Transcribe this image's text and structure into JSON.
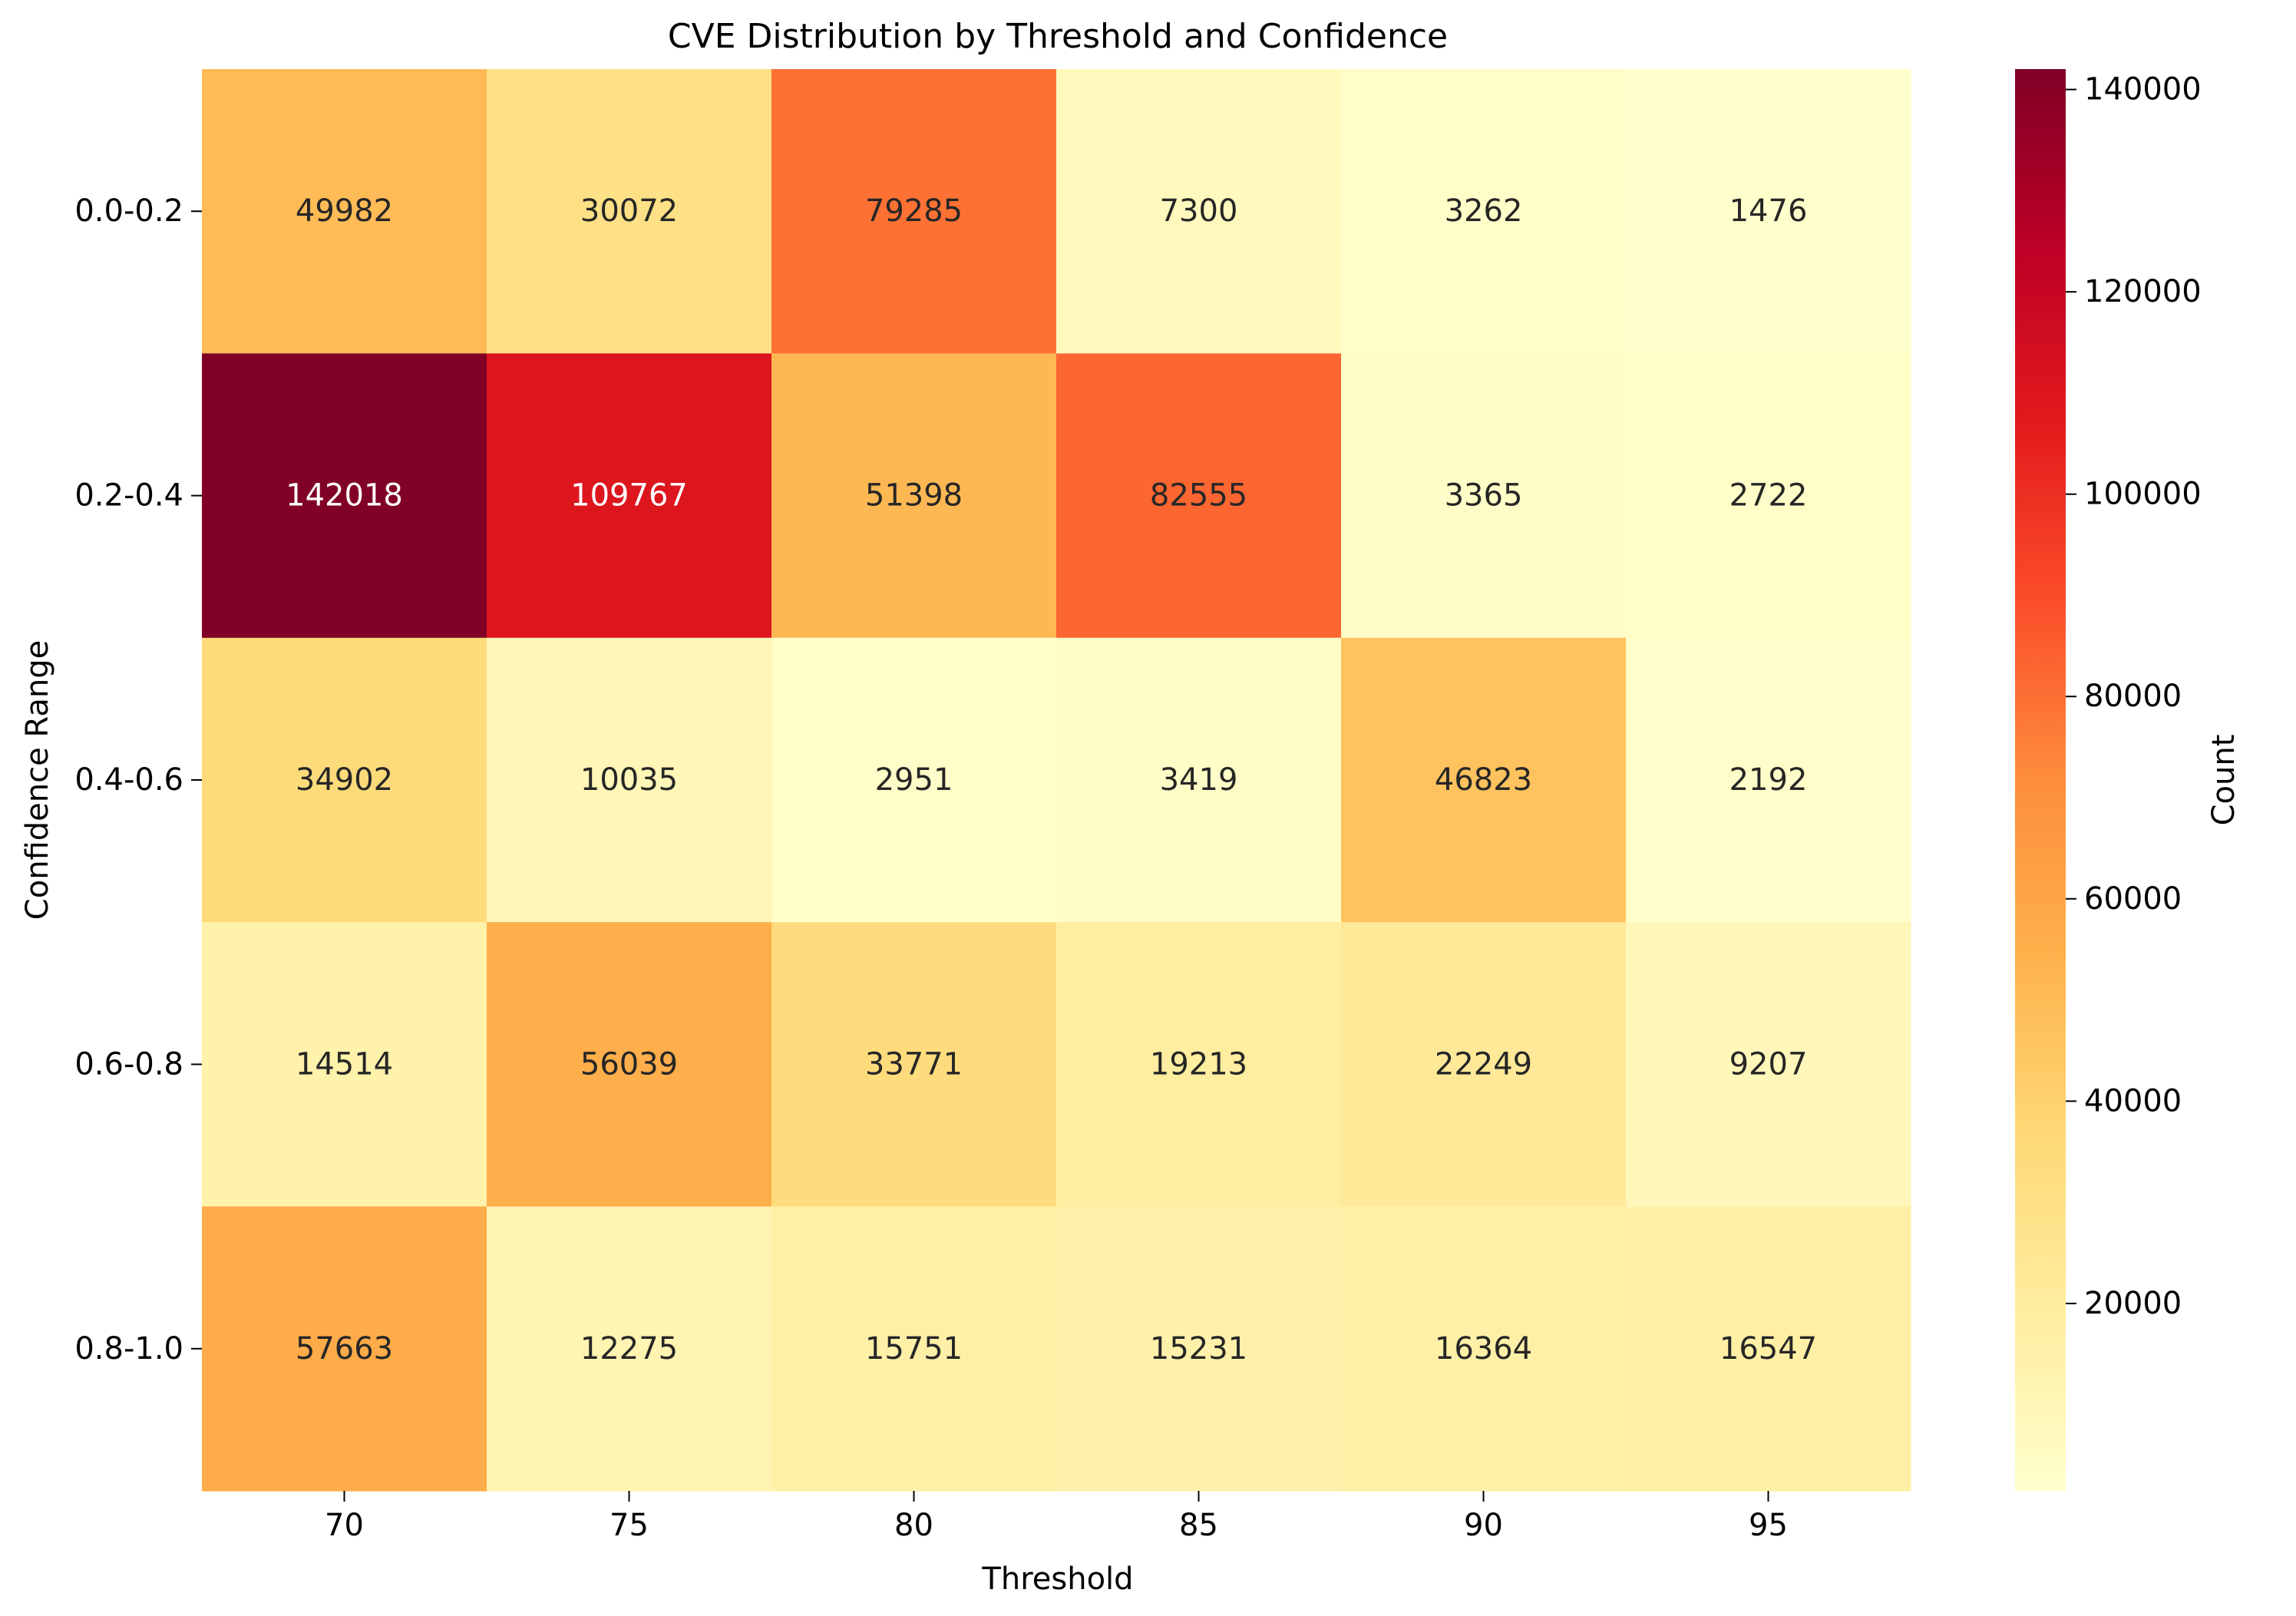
{
  "chart_data": {
    "type": "heatmap",
    "title": "CVE Distribution by Threshold and Confidence",
    "xlabel": "Threshold",
    "ylabel": "Confidence Range",
    "x_categories": [
      "70",
      "75",
      "80",
      "85",
      "90",
      "95"
    ],
    "y_categories": [
      "0.0-0.2",
      "0.2-0.4",
      "0.4-0.6",
      "0.6-0.8",
      "0.8-1.0"
    ],
    "values": [
      [
        49982,
        30072,
        79285,
        7300,
        3262,
        1476
      ],
      [
        142018,
        109767,
        51398,
        82555,
        3365,
        2722
      ],
      [
        34902,
        10035,
        2951,
        3419,
        46823,
        2192
      ],
      [
        14514,
        56039,
        33771,
        19213,
        22249,
        9207
      ],
      [
        57663,
        12275,
        15751,
        15231,
        16364,
        16547
      ]
    ],
    "value_range": [
      1476,
      142018
    ],
    "colorscale": "YlOrRd",
    "colorbar": {
      "label": "Count",
      "ticks": [
        20000,
        40000,
        60000,
        80000,
        100000,
        120000,
        140000
      ],
      "tick_labels": [
        "20000",
        "40000",
        "60000",
        "80000",
        "100000",
        "120000",
        "140000"
      ]
    },
    "annotations": "cell values shown"
  }
}
